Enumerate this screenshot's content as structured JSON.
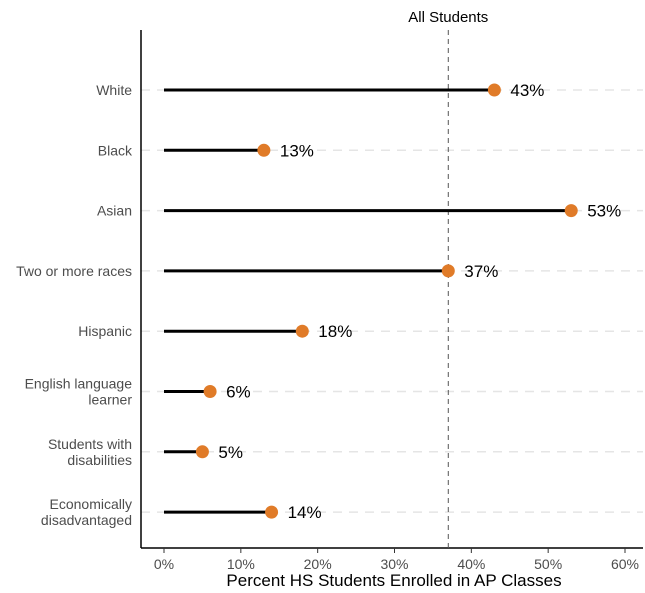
{
  "chart_data": {
    "type": "lollipop",
    "categories": [
      "White",
      "Black",
      "Asian",
      "Two or more races",
      "Hispanic",
      "English language\nlearner",
      "Students with\ndisabilities",
      "Economically\ndisadvantaged"
    ],
    "values": [
      43,
      13,
      53,
      37,
      18,
      6,
      5,
      14
    ],
    "data_labels": [
      "43%",
      "13%",
      "53%",
      "37%",
      "18%",
      "6%",
      "5%",
      "14%"
    ],
    "xlabel": "Percent HS Students Enrolled in AP Classes",
    "ylabel": "",
    "xlim": [
      0,
      60
    ],
    "x_ticks": [
      0,
      10,
      20,
      30,
      40,
      50,
      60
    ],
    "x_tick_labels": [
      "0%",
      "10%",
      "20%",
      "30%",
      "40%",
      "50%",
      "60%"
    ],
    "reference_line": {
      "value": 37,
      "label": "All Students",
      "style": "dashed"
    },
    "grid": "horizontal dashed per category",
    "colors": {
      "point": "#E07B28",
      "stem": "#000000",
      "grid": "#e5e5e5",
      "reference": "#555555"
    }
  }
}
